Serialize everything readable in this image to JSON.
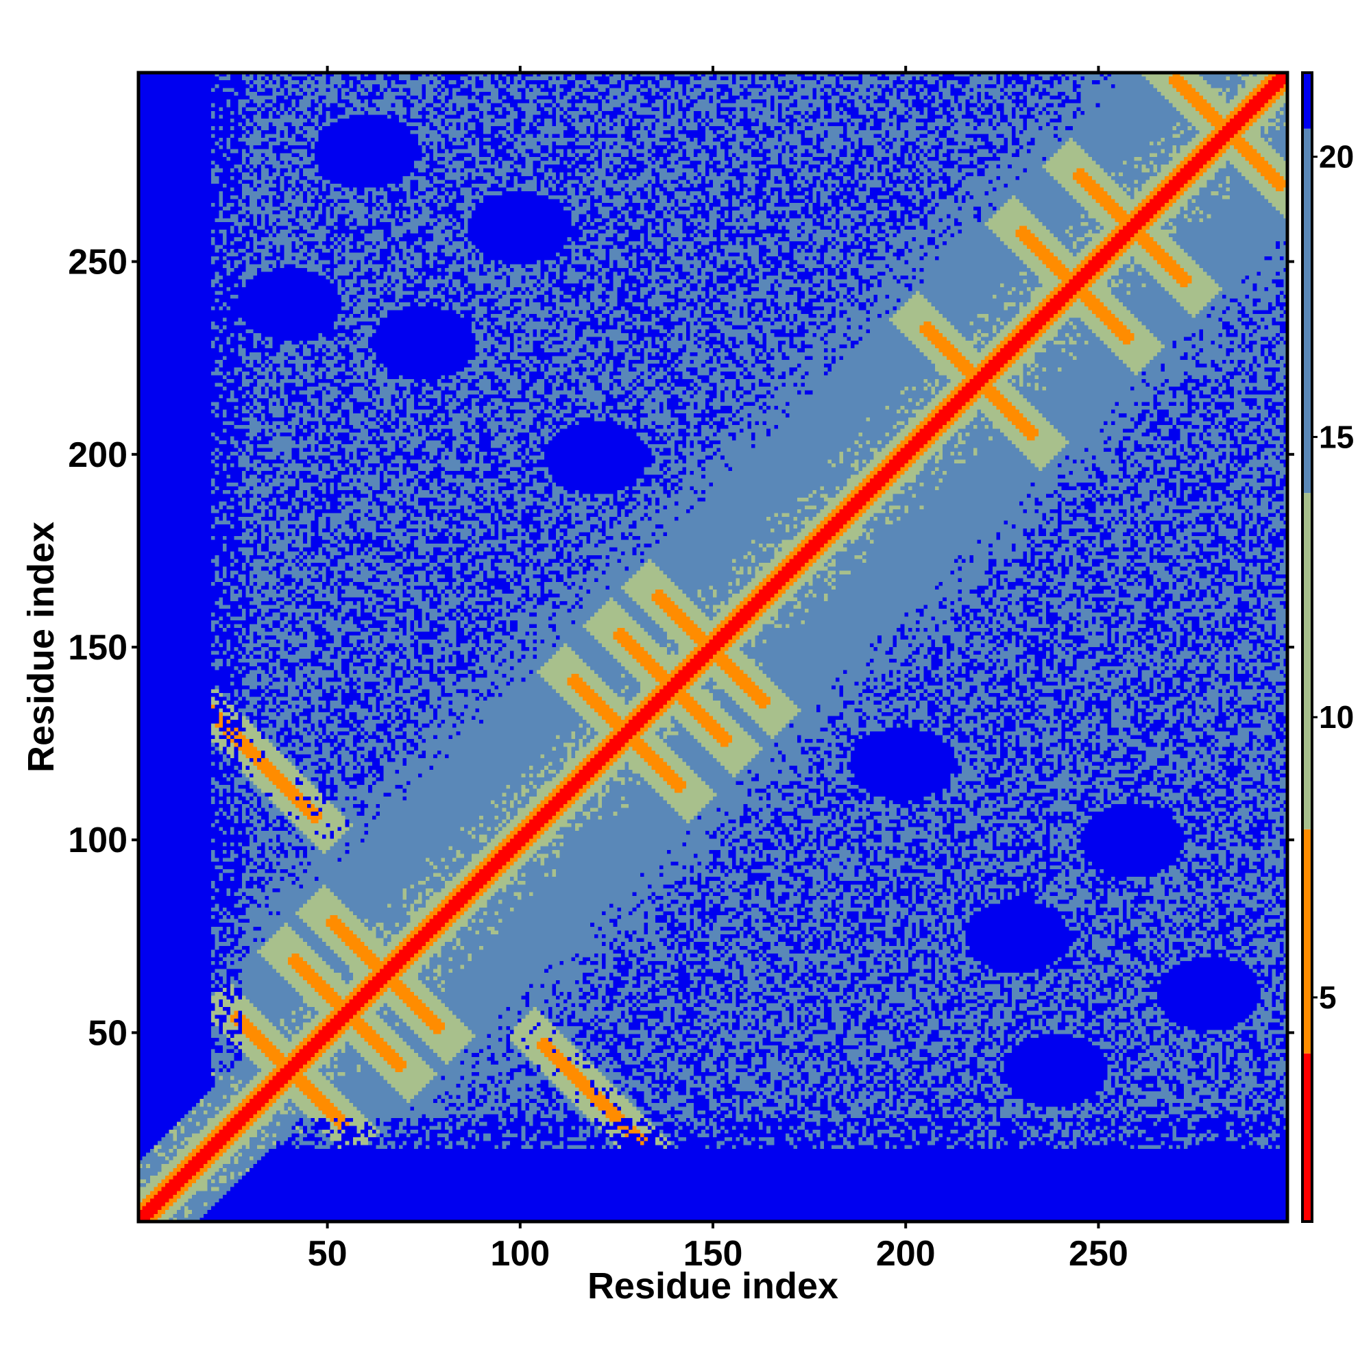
{
  "chart_data": {
    "type": "heatmap",
    "title": "",
    "xlabel": "Residue index",
    "ylabel": "Residue index",
    "x_range": [
      1,
      299
    ],
    "y_range": [
      1,
      299
    ],
    "x_ticks": [
      50,
      100,
      150,
      200,
      250
    ],
    "y_ticks": [
      50,
      100,
      150,
      200,
      250
    ],
    "colorbar": {
      "ticks": [
        5,
        10,
        15,
        20
      ],
      "range": [
        1,
        21.5
      ],
      "colors": {
        "contact": "#ff0000",
        "near": "#ff8c00",
        "mid": "#a8c08c",
        "far": "#5a88b8",
        "beyond": "#0000f0"
      }
    },
    "legend": "right colorbar",
    "grid": false,
    "diagonal": "distance ~0 along i=j",
    "features": {
      "antiparallel_contacts": [
        {
          "center": [
            55,
            55
          ]
        },
        {
          "center": [
            40,
            40
          ]
        },
        {
          "center": [
            65,
            65
          ]
        },
        {
          "center": [
            128,
            128
          ]
        },
        {
          "center": [
            140,
            140
          ]
        },
        {
          "center": [
            150,
            150
          ]
        },
        {
          "center": [
            220,
            220
          ]
        },
        {
          "center": [
            245,
            245
          ]
        },
        {
          "center": [
            260,
            260
          ]
        },
        {
          "center": [
            285,
            285
          ]
        },
        {
          "center": [
            120,
            33
          ]
        },
        {
          "center": [
            33,
            120
          ]
        }
      ],
      "far_blobs": [
        {
          "center": [
            230,
            75
          ]
        },
        {
          "center": [
            260,
            100
          ]
        },
        {
          "center": [
            200,
            120
          ]
        },
        {
          "center": [
            280,
            60
          ]
        },
        {
          "center": [
            240,
            40
          ]
        },
        {
          "center": [
            75,
            230
          ]
        },
        {
          "center": [
            100,
            260
          ]
        },
        {
          "center": [
            120,
            200
          ]
        },
        {
          "center": [
            60,
            280
          ]
        },
        {
          "center": [
            40,
            240
          ]
        }
      ]
    }
  }
}
